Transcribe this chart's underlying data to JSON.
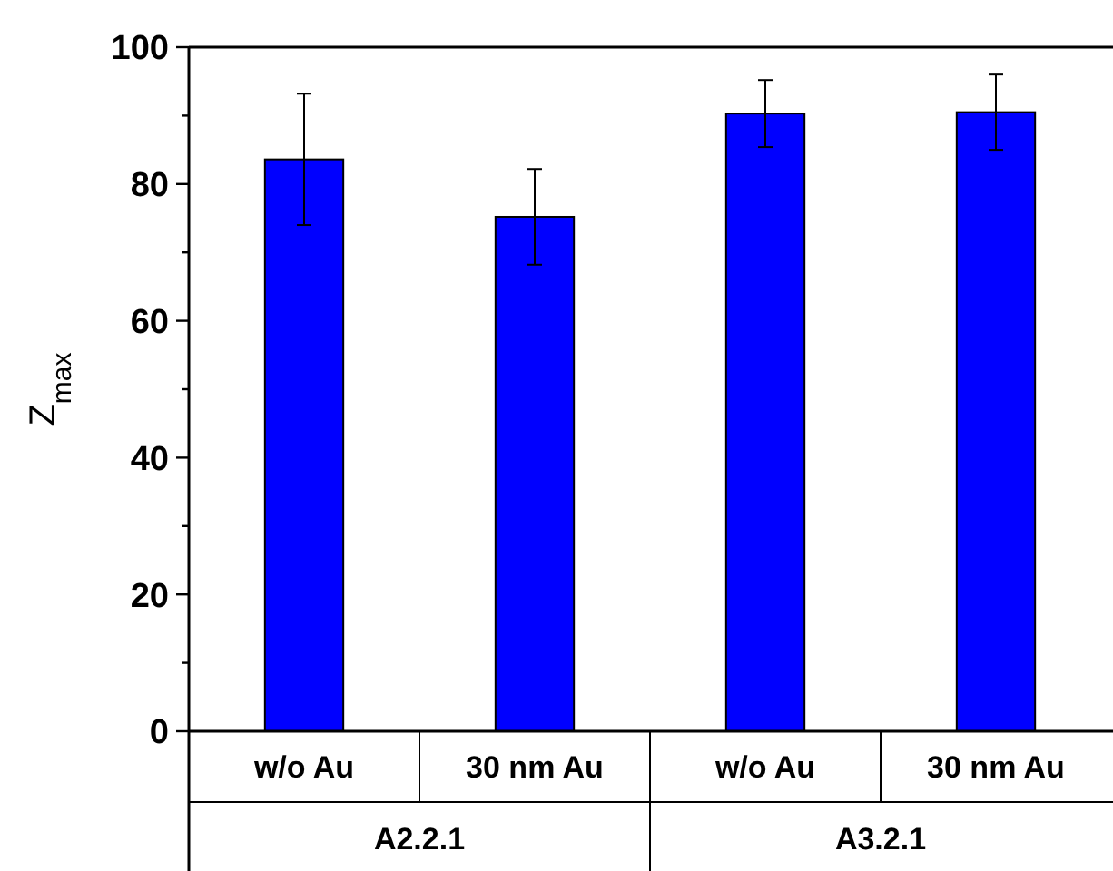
{
  "chart_data": {
    "type": "bar",
    "ylabel": "Z$_{max}$",
    "categories": [
      "w/o Au",
      "30 nm Au",
      "w/o Au",
      "30 nm Au"
    ],
    "values": [
      83.6,
      75.2,
      90.3,
      90.5
    ],
    "errors": [
      9.6,
      7,
      4.9,
      5.5
    ],
    "color": "#0000ff",
    "ylim": [
      0,
      100
    ],
    "yticks": [
      0,
      {
        "value": 10,
        "label": null
      },
      20,
      {
        "value": 30,
        "label": null
      },
      40,
      {
        "value": 50,
        "label": null
      },
      60,
      {
        "value": 70,
        "label": null
      },
      80,
      {
        "value": 90,
        "label": null
      },
      100
    ],
    "annotations": [
      "A2.2.1",
      "A3.2.1"
    ]
  }
}
